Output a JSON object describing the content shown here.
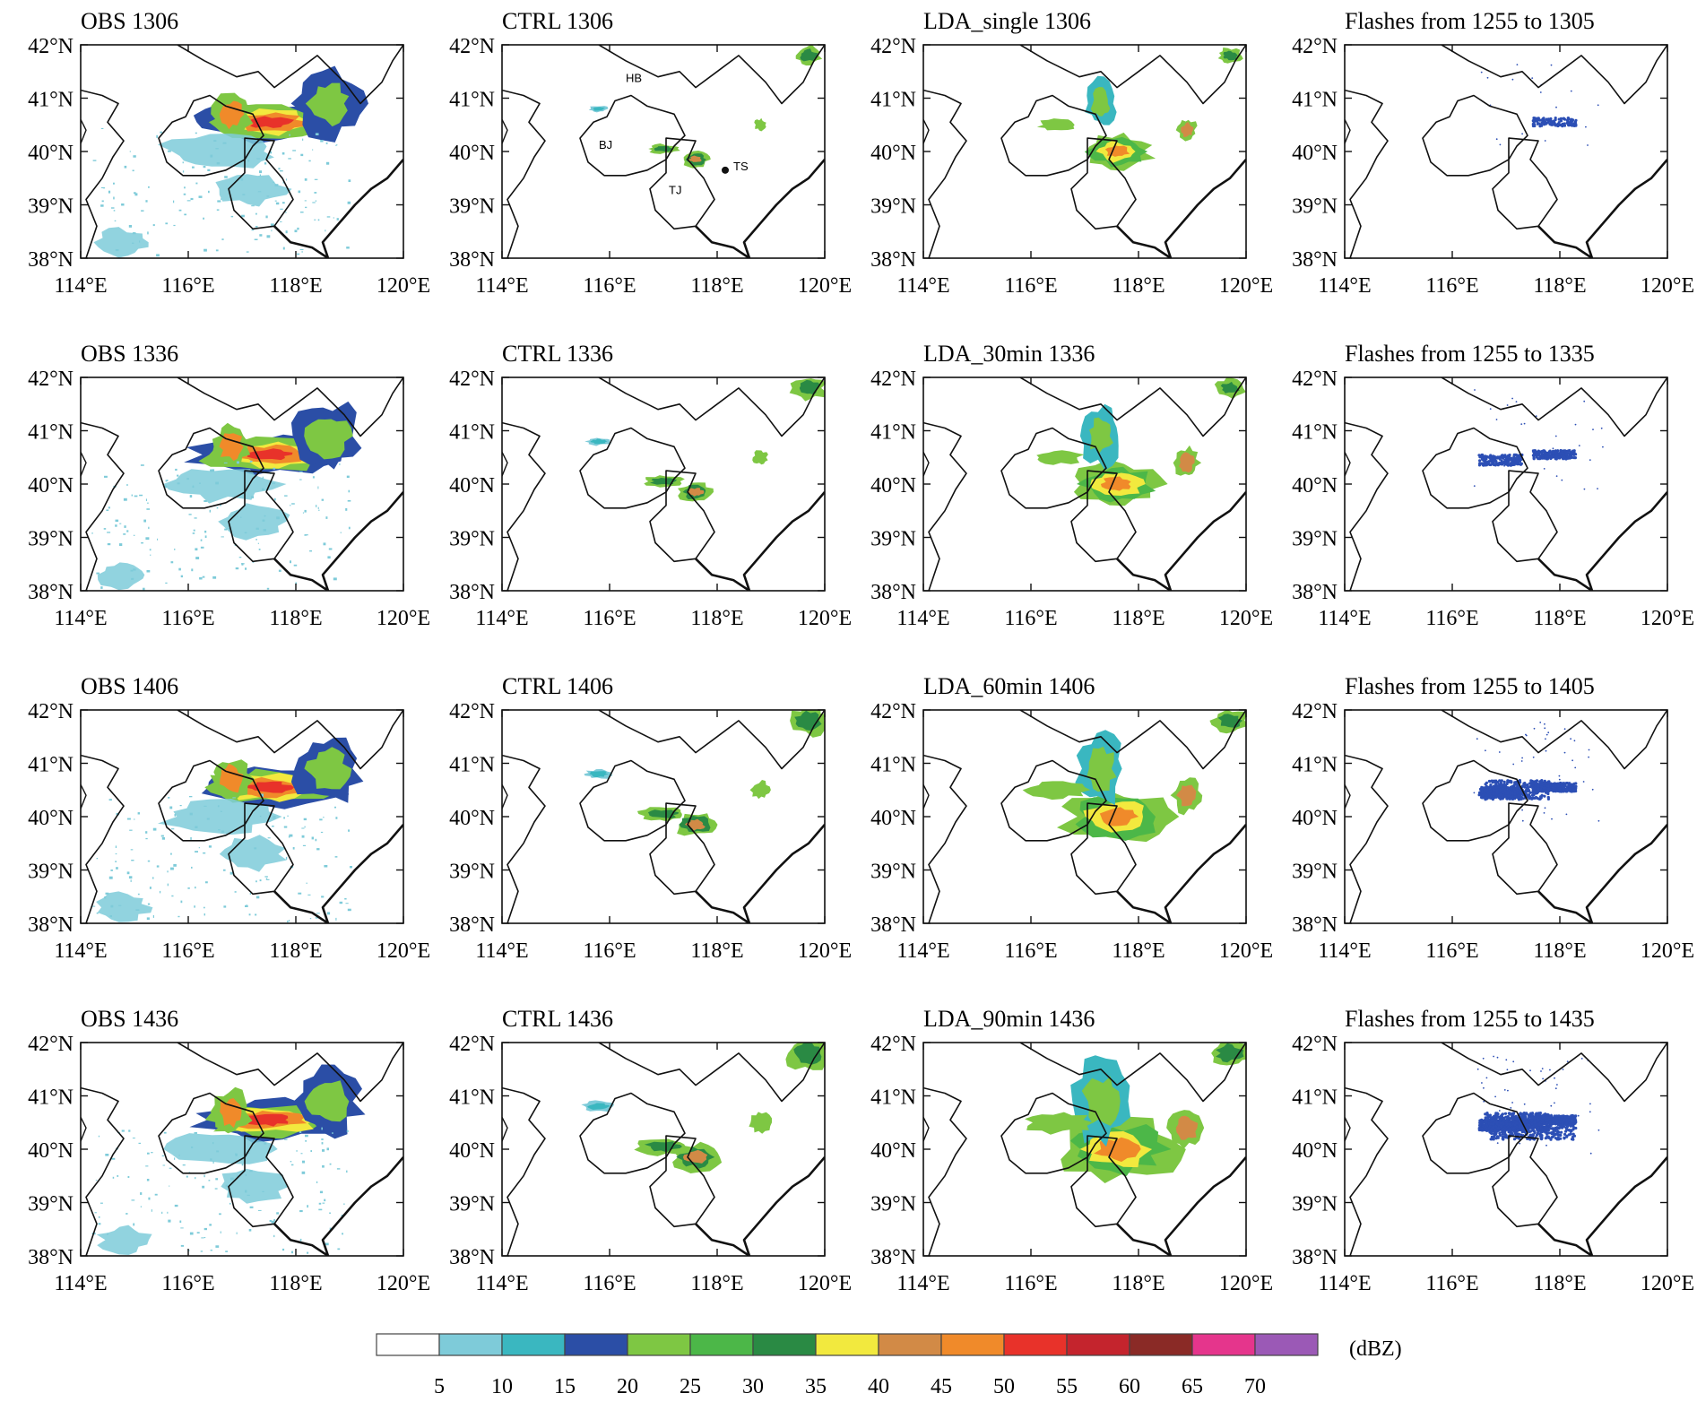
{
  "panels": [
    {
      "title": "OBS 1306",
      "kind": "obs",
      "seed": 1
    },
    {
      "title": "CTRL 1306",
      "kind": "ctrl",
      "seed": 2,
      "labels": [
        "HB",
        "BJ",
        "TS",
        "TJ"
      ]
    },
    {
      "title": "LDA_single 1306",
      "kind": "lda",
      "seed": 3
    },
    {
      "title": "Flashes from 1255 to 1305",
      "kind": "flash",
      "seed": 4
    },
    {
      "title": "OBS 1336",
      "kind": "obs",
      "seed": 5
    },
    {
      "title": "CTRL 1336",
      "kind": "ctrl",
      "seed": 6
    },
    {
      "title": "LDA_30min 1336",
      "kind": "lda",
      "seed": 7
    },
    {
      "title": "Flashes from 1255 to 1335",
      "kind": "flash",
      "seed": 8
    },
    {
      "title": "OBS 1406",
      "kind": "obs",
      "seed": 9
    },
    {
      "title": "CTRL 1406",
      "kind": "ctrl",
      "seed": 10
    },
    {
      "title": "LDA_60min 1406",
      "kind": "lda",
      "seed": 11
    },
    {
      "title": "Flashes from 1255 to 1405",
      "kind": "flash",
      "seed": 12
    },
    {
      "title": "OBS 1436",
      "kind": "obs",
      "seed": 13
    },
    {
      "title": "CTRL 1436",
      "kind": "ctrl",
      "seed": 14
    },
    {
      "title": "LDA_90min 1436",
      "kind": "lda",
      "seed": 15
    },
    {
      "title": "Flashes from 1255 to 1435",
      "kind": "flash",
      "seed": 16
    }
  ],
  "axes": {
    "lat_labels": [
      "42°N",
      "41°N",
      "40°N",
      "39°N",
      "38°N"
    ],
    "lon_labels": [
      "114°E",
      "116°E",
      "118°E",
      "120°E"
    ],
    "lat_range": [
      38,
      42
    ],
    "lon_range": [
      114,
      120
    ]
  },
  "colorbar": {
    "unit": "(dBZ)",
    "tick_labels": [
      "5",
      "10",
      "15",
      "20",
      "25",
      "30",
      "35",
      "40",
      "45",
      "50",
      "55",
      "60",
      "65",
      "70"
    ],
    "colors": [
      "#ffffff",
      "#7ecbd9",
      "#3ab7c0",
      "#2b4ea6",
      "#7ec743",
      "#4cb748",
      "#2a8a44",
      "#f2e93e",
      "#d28a46",
      "#f08a2a",
      "#e8322a",
      "#c4242d",
      "#8a2a26",
      "#e5358c",
      "#9b59b6"
    ]
  },
  "flash_color": "#2c4fb5"
}
